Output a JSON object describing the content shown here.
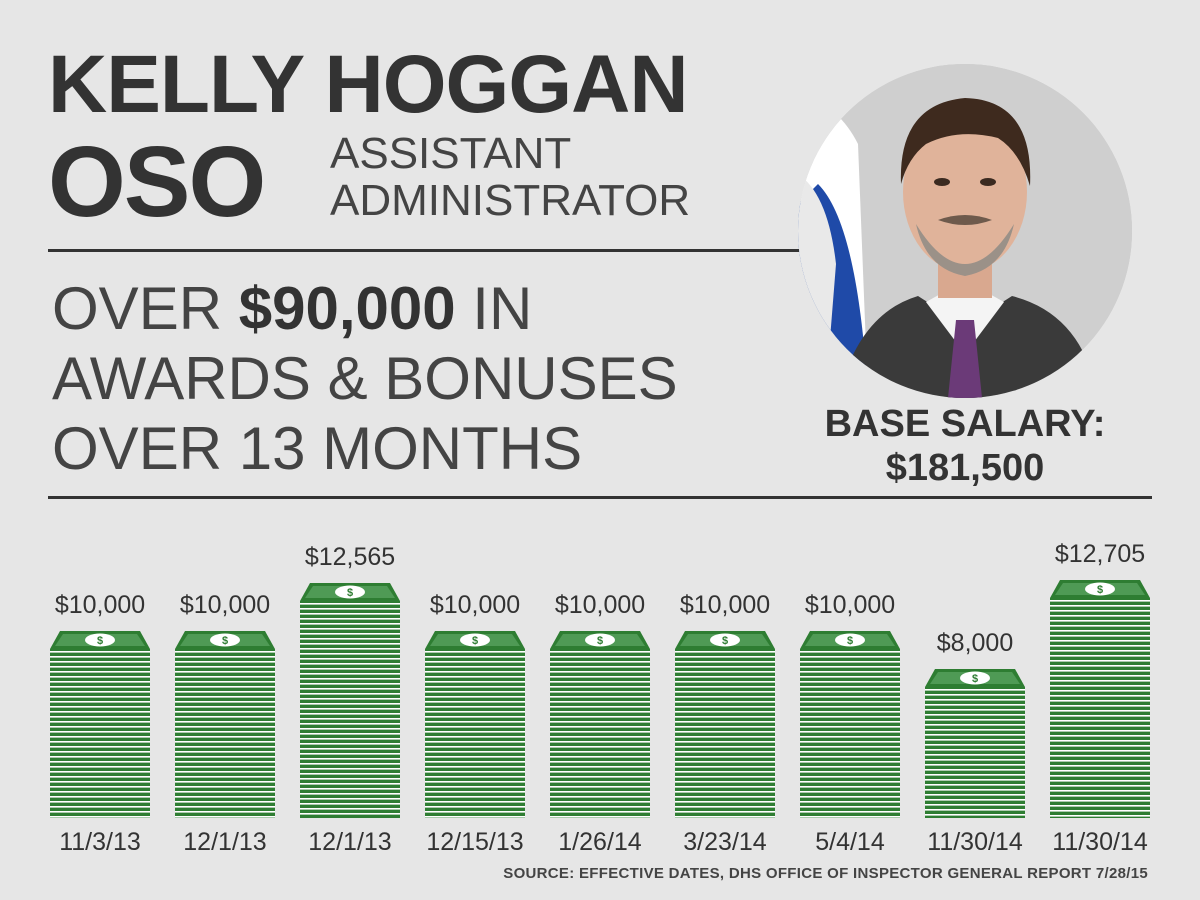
{
  "header": {
    "name": "KELLY HOGGAN",
    "dept": "OSO",
    "role_line1": "ASSISTANT",
    "role_line2": "ADMINISTRATOR"
  },
  "headline": {
    "line1_a": "OVER ",
    "line1_bold": "$90,000",
    "line1_b": " IN",
    "line2": "AWARDS & BONUSES",
    "line3": "OVER 13 MONTHS"
  },
  "salary": {
    "label": "BASE SALARY:",
    "value": "$181,500"
  },
  "colors": {
    "background": "#e6e6e6",
    "text": "#333333",
    "money_green": "#2e7d32",
    "money_light": "#ffffff"
  },
  "chart_data": {
    "type": "bar",
    "title": "OVER $90,000 IN AWARDS & BONUSES OVER 13 MONTHS",
    "categories": [
      "11/3/13",
      "12/1/13",
      "12/1/13",
      "12/15/13",
      "1/26/14",
      "3/23/14",
      "5/4/14",
      "11/30/14",
      "11/30/14"
    ],
    "values": [
      10000,
      10000,
      12565,
      10000,
      10000,
      10000,
      10000,
      8000,
      12705
    ],
    "labels": [
      "$10,000",
      "$10,000",
      "$12,565",
      "$10,000",
      "$10,000",
      "$10,000",
      "$10,000",
      "$8,000",
      "$12,705"
    ],
    "xlabel": "",
    "ylabel": "",
    "ylim": [
      0,
      12705
    ],
    "grid": false,
    "legend": "none"
  },
  "source": "SOURCE: EFFECTIVE DATES, DHS OFFICE OF INSPECTOR GENERAL REPORT 7/28/15"
}
